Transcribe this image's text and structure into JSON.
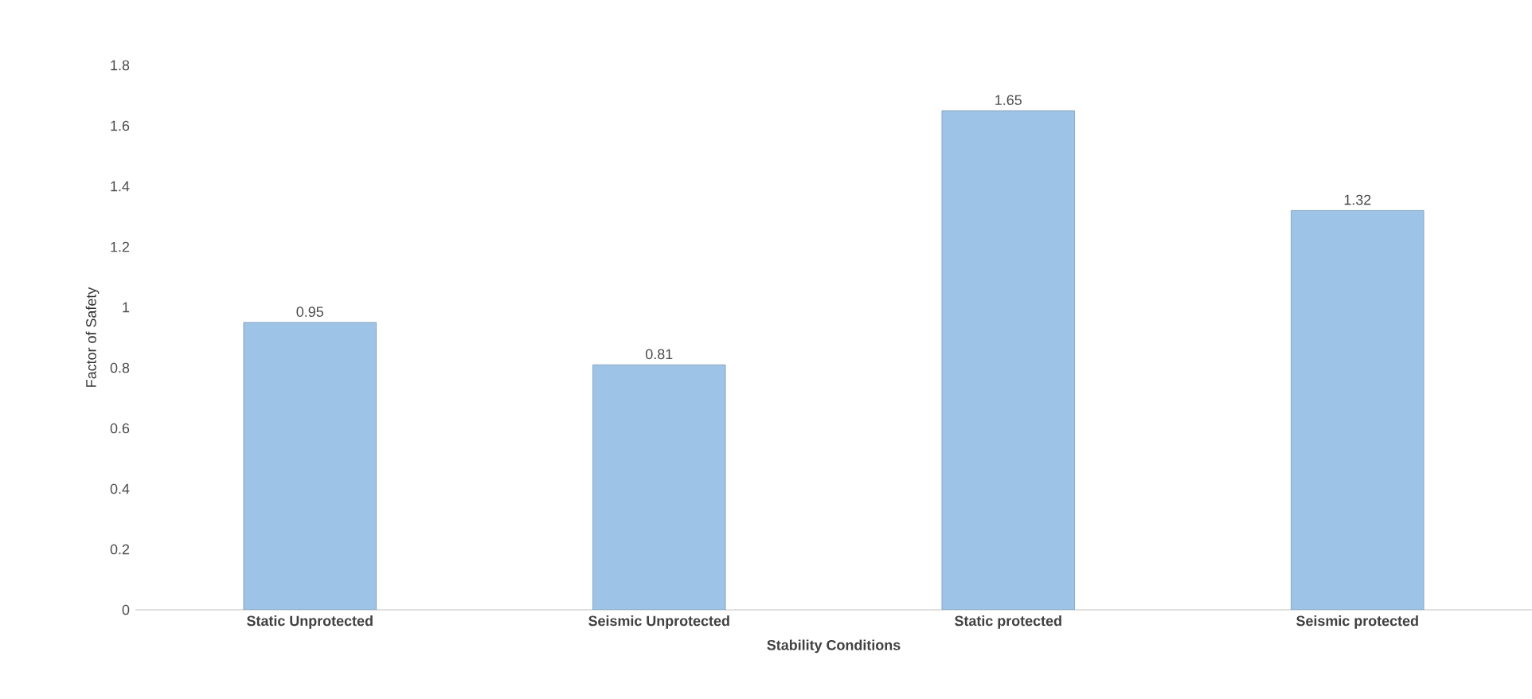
{
  "chart_data": {
    "type": "bar",
    "xlabel": "Stability Conditions",
    "ylabel": "Factor of Safety",
    "categories": [
      "Static Unprotected",
      "Seismic Unprotected",
      "Static protected",
      "Seismic protected"
    ],
    "values": [
      0.95,
      0.81,
      1.65,
      1.32
    ],
    "color": "#9dc3e6",
    "ylim": [
      0,
      1.8
    ],
    "yticks": [
      0,
      0.2,
      0.4,
      0.6,
      0.8,
      1,
      1.2,
      1.4,
      1.6,
      1.8
    ],
    "data_labels": true
  }
}
